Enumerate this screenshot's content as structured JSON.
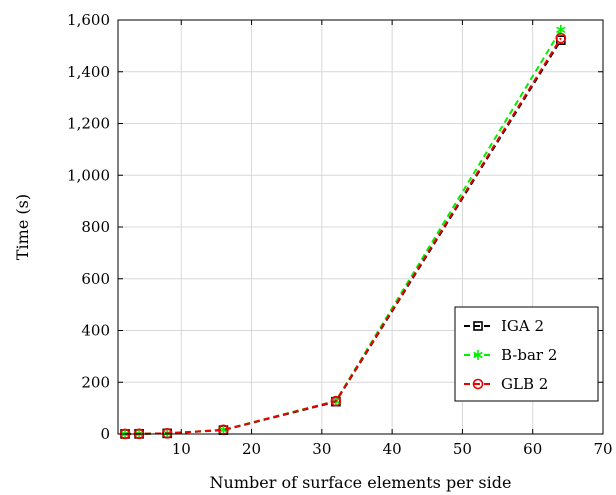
{
  "chart_data": {
    "type": "line",
    "title": "",
    "xlabel": "Number of surface elements per side",
    "ylabel": "Time (s)",
    "xlim": [
      1,
      70
    ],
    "ylim": [
      0,
      1600
    ],
    "xticks": [
      10,
      20,
      30,
      40,
      50,
      60,
      70
    ],
    "yticks": [
      0,
      200,
      400,
      600,
      800,
      1000,
      1200,
      1400,
      1600
    ],
    "xtick_labels": [
      "10",
      "20",
      "30",
      "40",
      "50",
      "60",
      "70"
    ],
    "ytick_labels": [
      "0",
      "200",
      "400",
      "600",
      "800",
      "1,000",
      "1,200",
      "1,400",
      "1,600"
    ],
    "grid": true,
    "legend_position": "bottom-right",
    "x": [
      2,
      4,
      8,
      16,
      32,
      64
    ],
    "series": [
      {
        "name": "IGA 2",
        "values": [
          0.2,
          0.6,
          2.5,
          15,
          125,
          1522
        ],
        "color": "#000000",
        "marker": "square"
      },
      {
        "name": "B-bar 2",
        "values": [
          0.2,
          0.6,
          2.6,
          16,
          128,
          1562
        ],
        "color": "#00ee00",
        "marker": "star"
      },
      {
        "name": "GLB 2",
        "values": [
          0.2,
          0.6,
          2.6,
          16,
          127,
          1530
        ],
        "color": "#ee0000",
        "marker": "circle"
      }
    ]
  }
}
